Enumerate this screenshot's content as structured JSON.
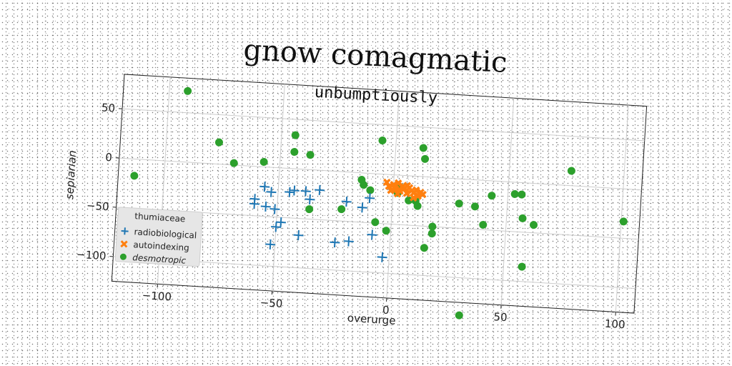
{
  "chart_data": {
    "type": "scatter",
    "title": "gnow comagmatic",
    "subtitle": "unbumptiously",
    "xlabel": "overurge",
    "ylabel": "sepiarian",
    "xlim": [
      -120,
      108
    ],
    "ylim": [
      -125,
      85
    ],
    "xticks": [
      "−100",
      "−50",
      "0",
      "50",
      "100"
    ],
    "yticks": [
      "50",
      "0",
      "−50",
      "−100"
    ],
    "xtick_values": [
      -100,
      -50,
      0,
      50,
      100
    ],
    "ytick_values": [
      50,
      0,
      -50,
      -100
    ],
    "grid": true,
    "legend": {
      "title": "thumiaceae",
      "placement": "lower-left",
      "entries": [
        "radiobiological",
        "autoindexing",
        "desmotropic"
      ]
    },
    "series": [
      {
        "name": "radiobiological",
        "marker": "plus",
        "color": "#1f77b4",
        "points": [
          [
            -60,
            -38
          ],
          [
            -60,
            -33
          ],
          [
            -56,
            -20
          ],
          [
            -55,
            -40
          ],
          [
            -53,
            -25
          ],
          [
            -51,
            -42
          ],
          [
            -50,
            -60
          ],
          [
            -52,
            -78
          ],
          [
            -48,
            -55
          ],
          [
            -45,
            -24
          ],
          [
            -43,
            -22
          ],
          [
            -40,
            -67
          ],
          [
            -38,
            -22
          ],
          [
            -36,
            -30
          ],
          [
            -32,
            -20
          ],
          [
            -24,
            -72
          ],
          [
            -20,
            -30
          ],
          [
            -18,
            -70
          ],
          [
            -13,
            -35
          ],
          [
            -10,
            -25
          ],
          [
            -8,
            -62
          ],
          [
            -3,
            -84
          ]
        ]
      },
      {
        "name": "autoindexing",
        "marker": "x",
        "color": "#ff7f0e",
        "points": [
          [
            -3,
            -8
          ],
          [
            -2,
            -12
          ],
          [
            0,
            -10
          ],
          [
            1,
            -14
          ],
          [
            2,
            -8
          ],
          [
            3,
            -16
          ],
          [
            4,
            -11
          ],
          [
            5,
            -13
          ],
          [
            6,
            -18
          ],
          [
            7,
            -12
          ],
          [
            8,
            -15
          ],
          [
            9,
            -17
          ],
          [
            10,
            -14
          ],
          [
            11,
            -20
          ],
          [
            12,
            -16
          ],
          [
            13,
            -18
          ],
          [
            -1,
            -16
          ],
          [
            2,
            -19
          ],
          [
            6,
            -10
          ],
          [
            9,
            -22
          ]
        ]
      },
      {
        "name": "desmotropic",
        "marker": "circle",
        "color": "#2ca02c",
        "points": [
          [
            -92,
            72
          ],
          [
            -77,
            22
          ],
          [
            -70,
            2
          ],
          [
            -57,
            5
          ],
          [
            -44,
            34
          ],
          [
            -44,
            17
          ],
          [
            -37,
            15
          ],
          [
            -36,
            -40
          ],
          [
            -22,
            -38
          ],
          [
            -14,
            -7
          ],
          [
            -13,
            -12
          ],
          [
            -10,
            -17
          ],
          [
            -6,
            34
          ],
          [
            -7,
            -49
          ],
          [
            -2,
            -57
          ],
          [
            2,
            -18
          ],
          [
            3,
            -12
          ],
          [
            7,
            -25
          ],
          [
            10,
            -25
          ],
          [
            11,
            -30
          ],
          [
            12,
            29
          ],
          [
            13,
            18
          ],
          [
            15,
            -72
          ],
          [
            18,
            -50
          ],
          [
            18,
            -57
          ],
          [
            29,
            -25
          ],
          [
            32,
            -138
          ],
          [
            36,
            -27
          ],
          [
            40,
            -45
          ],
          [
            43,
            -15
          ],
          [
            53,
            -12
          ],
          [
            56,
            -12
          ],
          [
            57,
            -36
          ],
          [
            58,
            -85
          ],
          [
            62,
            -42
          ],
          [
            77,
            15
          ],
          [
            101,
            -33
          ],
          [
            -113,
            -17
          ]
        ]
      }
    ]
  }
}
